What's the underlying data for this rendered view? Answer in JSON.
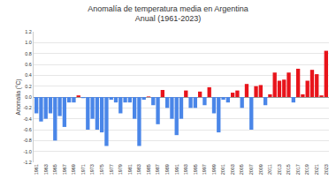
{
  "chart_data": {
    "type": "bar",
    "title": "Anomalía de temperatura media en Argentina",
    "subtitle": "Anual (1961-2023)",
    "y_label": "Anomalía (°C)",
    "categories": [
      "1961",
      null,
      "1963",
      null,
      "1965",
      null,
      "1967",
      null,
      "1969",
      null,
      "1971",
      null,
      "1973",
      null,
      "1975",
      null,
      "1977",
      null,
      "1979",
      null,
      "1981",
      null,
      "1983",
      null,
      "1985",
      null,
      "1987",
      null,
      "1989",
      null,
      "1991",
      null,
      "1993",
      null,
      "1995",
      null,
      "1997",
      null,
      "1999",
      null,
      "2001",
      null,
      "2003",
      null,
      "2005",
      null,
      "2007",
      null,
      "2009",
      null,
      "2011",
      null,
      "2013",
      null,
      "2015",
      null,
      "2017",
      null,
      "2019",
      null,
      "2021",
      null,
      "2023"
    ],
    "values": [
      -0.3,
      -0.45,
      -0.4,
      -0.3,
      -0.8,
      -0.35,
      -0.55,
      -0.1,
      -0.1,
      0.03,
      -0.02,
      -0.6,
      -0.4,
      -0.6,
      -0.65,
      -0.9,
      -0.05,
      -0.1,
      -0.3,
      -0.1,
      -0.1,
      -0.4,
      -0.9,
      -0.05,
      0.01,
      -0.15,
      -0.5,
      0.13,
      -0.2,
      -0.4,
      -0.7,
      -0.4,
      0.12,
      -0.2,
      -0.2,
      0.1,
      -0.15,
      0.18,
      -0.3,
      -0.65,
      -0.05,
      -0.1,
      0.08,
      0.12,
      -0.2,
      0.24,
      -0.6,
      0.2,
      0.22,
      -0.15,
      0.05,
      0.45,
      0.3,
      0.32,
      0.45,
      -0.1,
      0.52,
      0.05,
      0.3,
      0.5,
      0.42,
      0.03,
      0.85
    ],
    "colors": [
      "#4a86e8",
      "#4a86e8",
      "#4a86e8",
      "#4a86e8",
      "#4a86e8",
      "#4a86e8",
      "#4a86e8",
      "#4a86e8",
      "#4a86e8",
      "#e8141b",
      "#4a86e8",
      "#4a86e8",
      "#4a86e8",
      "#4a86e8",
      "#4a86e8",
      "#4a86e8",
      "#4a86e8",
      "#4a86e8",
      "#4a86e8",
      "#4a86e8",
      "#4a86e8",
      "#4a86e8",
      "#4a86e8",
      "#4a86e8",
      "#e8141b",
      "#4a86e8",
      "#4a86e8",
      "#e8141b",
      "#4a86e8",
      "#4a86e8",
      "#4a86e8",
      "#4a86e8",
      "#e8141b",
      "#4a86e8",
      "#4a86e8",
      "#e8141b",
      "#4a86e8",
      "#e8141b",
      "#4a86e8",
      "#4a86e8",
      "#4a86e8",
      "#4a86e8",
      "#e8141b",
      "#e8141b",
      "#4a86e8",
      "#e8141b",
      "#4a86e8",
      "#e8141b",
      "#e8141b",
      "#4a86e8",
      "#e8141b",
      "#e8141b",
      "#e8141b",
      "#e8141b",
      "#e8141b",
      "#4a86e8",
      "#e8141b",
      "#e8141b",
      "#e8141b",
      "#e8141b",
      "#e8141b",
      "#e8141b",
      "#e8141b"
    ],
    "ylim": [
      -1.2,
      1.2
    ],
    "yticks": [
      {
        "value": -1.2,
        "label": "-1.2"
      },
      {
        "value": -1,
        "label": "-1.0"
      },
      -0.8,
      -0.6,
      -0.4,
      -0.2,
      {
        "value": 0,
        "label": "0.0"
      },
      0.2,
      0.4,
      0.6,
      0.8,
      {
        "value": 1,
        "label": "1.0"
      },
      1.2
    ],
    "grid": true
  }
}
